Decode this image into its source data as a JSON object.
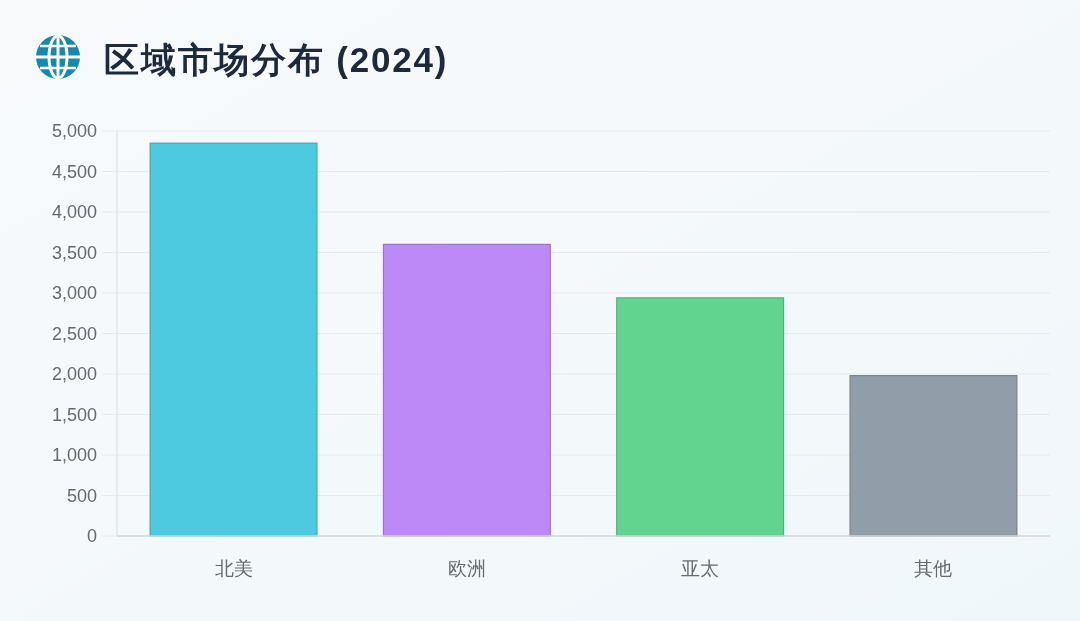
{
  "chart_data": {
    "type": "bar",
    "title": "区域市场分布 (2024)",
    "categories": [
      "北美",
      "欧洲",
      "亚太",
      "其他"
    ],
    "values": [
      4850,
      3600,
      2940,
      1980
    ],
    "colors": [
      "#4dcae0",
      "#bc89f7",
      "#62d48f",
      "#919da8"
    ],
    "ylim": [
      0,
      5000
    ],
    "yticks": [
      0,
      {
        "value": 500,
        "label": "500"
      },
      {
        "value": 1000,
        "label": "1,000"
      },
      {
        "value": 1500,
        "label": "1,500"
      },
      {
        "value": 2000,
        "label": "2,000"
      },
      {
        "value": 2500,
        "label": "2,500"
      },
      {
        "value": 3000,
        "label": "3,000"
      },
      {
        "value": 3500,
        "label": "3,500"
      },
      {
        "value": 4000,
        "label": "4,000"
      },
      {
        "value": 4500,
        "label": "4,500"
      },
      {
        "value": 5000,
        "label": "5,000"
      }
    ],
    "grid": "y"
  }
}
